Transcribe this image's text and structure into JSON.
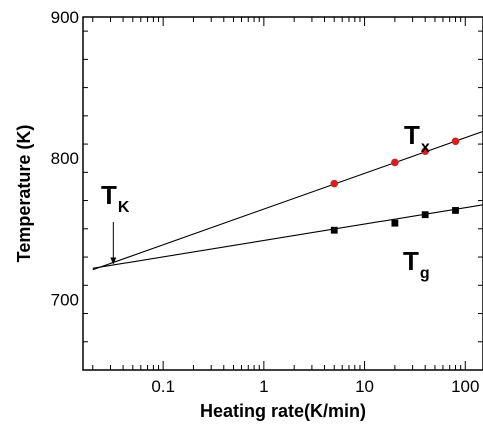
{
  "chart_data": {
    "type": "scatter",
    "title": "",
    "xlabel": "Heating rate(K/min)",
    "ylabel": "Temperature (K)",
    "xscale": "log",
    "xlim": [
      0.016,
      150
    ],
    "ylim": [
      650,
      900
    ],
    "xticks": [
      {
        "value": 0.1,
        "label": "0.1"
      },
      {
        "value": 1,
        "label": "1"
      },
      {
        "value": 10,
        "label": "10"
      },
      {
        "value": 100,
        "label": "100"
      }
    ],
    "yticks": [
      {
        "value": 700,
        "label": "700"
      },
      {
        "value": 800,
        "label": "800"
      },
      {
        "value": 900,
        "label": "900"
      }
    ],
    "grid": false,
    "series": [
      {
        "label_main": "T",
        "label_sub": "x",
        "color": "#d42020",
        "marker": "circle",
        "x": [
          5,
          20,
          40,
          80
        ],
        "y": [
          782,
          797,
          805,
          812
        ],
        "fit_line": {
          "x": [
            0.02,
            150
          ],
          "y": [
            721,
            819
          ]
        }
      },
      {
        "label_main": "T",
        "label_sub": "g",
        "color": "#000000",
        "marker": "square",
        "x": [
          5,
          20,
          40,
          80
        ],
        "y": [
          749,
          754,
          760,
          763
        ],
        "fit_line": {
          "x": [
            0.02,
            150
          ],
          "y": [
            722,
            767
          ]
        }
      }
    ],
    "annotations": [
      {
        "main": "T",
        "sub": "K",
        "x": 0.032,
        "y": 724,
        "arrow": true
      }
    ]
  }
}
